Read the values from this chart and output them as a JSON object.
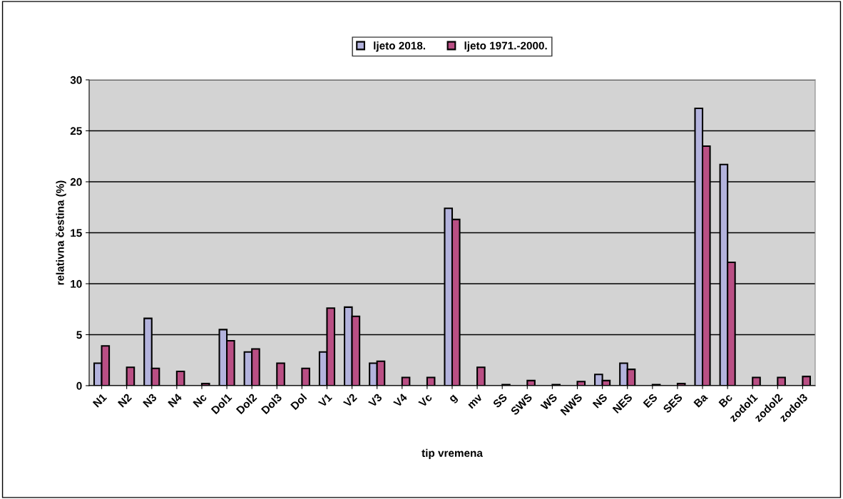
{
  "chart_data": {
    "type": "bar",
    "xlabel": "tip vremena",
    "ylabel": "relativna čestina (%)",
    "categories": [
      "N1",
      "N2",
      "N3",
      "N4",
      "Nc",
      "Dol1",
      "Dol2",
      "Dol3",
      "Dol",
      "V1",
      "V2",
      "V3",
      "V4",
      "Vc",
      "g",
      "mv",
      "SS",
      "SWS",
      "WS",
      "NWS",
      "NS",
      "NES",
      "ES",
      "SES",
      "Ba",
      "Bc",
      "zodol1",
      "zodol2",
      "zodol3"
    ],
    "series": [
      {
        "name": "ljeto 2018.",
        "color": "#b3b3dd",
        "values": [
          2.2,
          null,
          6.6,
          null,
          null,
          5.5,
          3.3,
          null,
          null,
          3.3,
          7.7,
          2.2,
          null,
          null,
          17.4,
          null,
          null,
          null,
          null,
          null,
          1.1,
          2.2,
          null,
          null,
          27.2,
          21.7,
          null,
          null,
          null
        ]
      },
      {
        "name": "ljeto 1971.-2000.",
        "color": "#b94f84",
        "values": [
          3.9,
          1.8,
          1.7,
          1.4,
          0.2,
          4.4,
          3.6,
          2.2,
          1.7,
          7.6,
          6.8,
          2.4,
          0.8,
          0.8,
          16.3,
          1.8,
          0.1,
          0.5,
          0.1,
          0.4,
          0.5,
          1.6,
          0.1,
          0.2,
          23.5,
          12.1,
          0.8,
          0.8,
          0.9
        ]
      }
    ],
    "ylim": [
      0,
      30
    ],
    "yticks": [
      0,
      5,
      10,
      15,
      20,
      25,
      30
    ],
    "grid": "y",
    "legend": "top"
  }
}
